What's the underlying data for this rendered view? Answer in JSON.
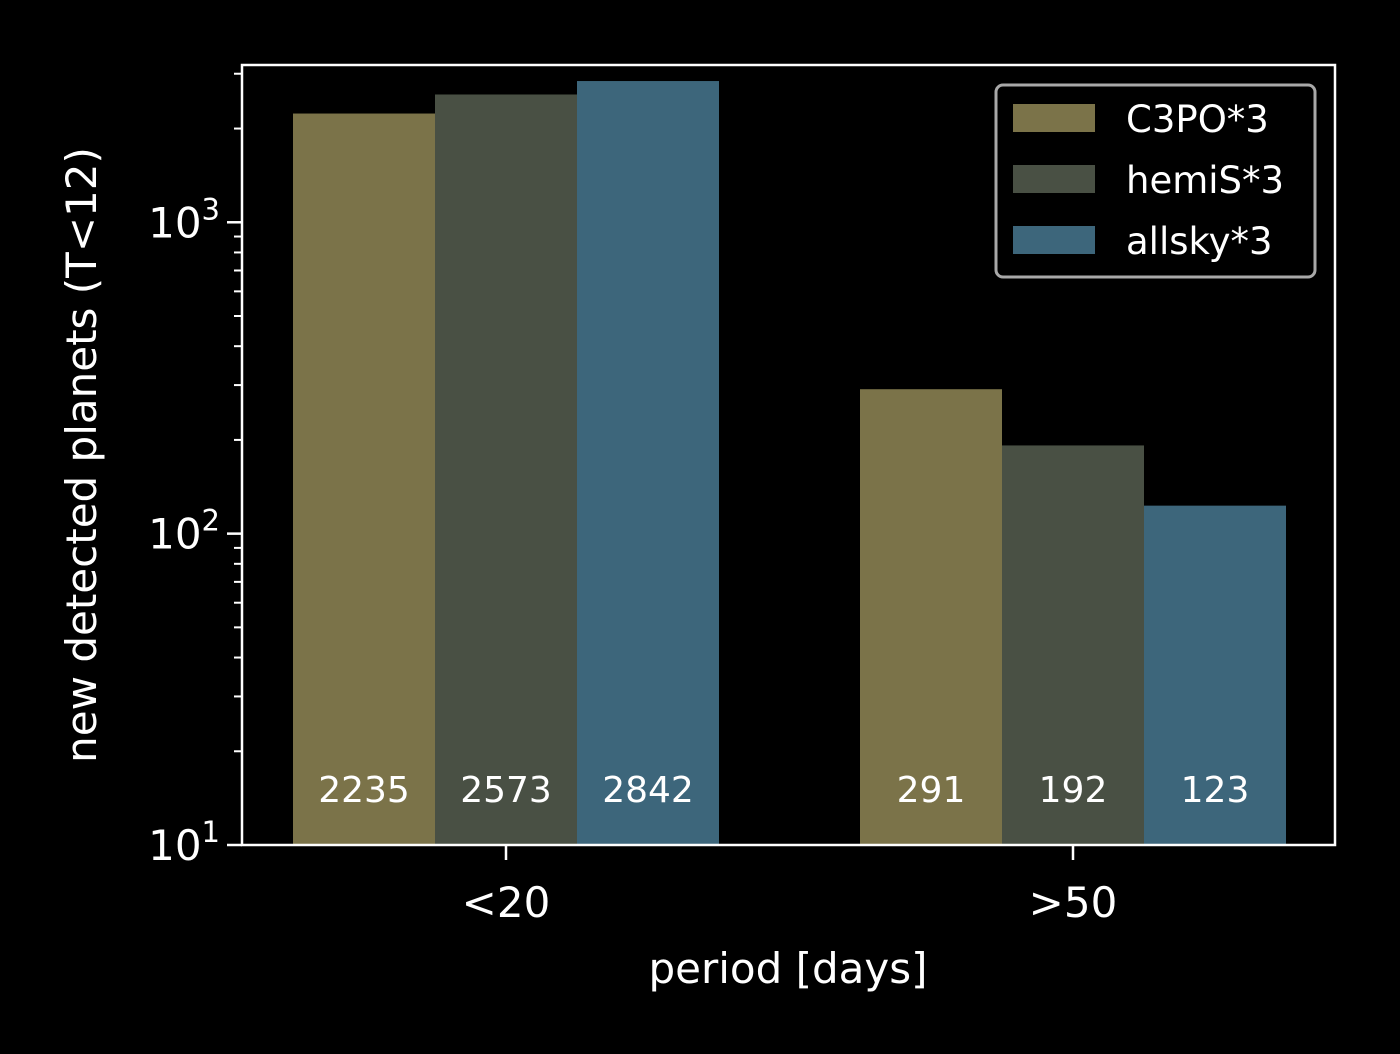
{
  "chart_data": {
    "type": "bar",
    "title": "",
    "xlabel": "period [days]",
    "ylabel": "new detected planets (T<12)",
    "yscale": "log",
    "ylim": [
      10,
      3200
    ],
    "y_ticks": [
      {
        "value": 10,
        "base": "10",
        "exp": "1"
      },
      {
        "value": 100,
        "base": "10",
        "exp": "2"
      },
      {
        "value": 1000,
        "base": "10",
        "exp": "3"
      }
    ],
    "categories": [
      "<20",
      ">50"
    ],
    "series": [
      {
        "name": "C3PO*3",
        "color": "#7b7349",
        "values": [
          2235,
          291
        ]
      },
      {
        "name": "hemiS*3",
        "color": "#495044",
        "values": [
          2573,
          192
        ]
      },
      {
        "name": "allsky*3",
        "color": "#3d667b",
        "values": [
          2842,
          123
        ]
      }
    ],
    "data_label_color": "#ffffff",
    "legend_position": "top-right",
    "background": "#000000",
    "axis_color": "#ffffff",
    "grid": false
  }
}
